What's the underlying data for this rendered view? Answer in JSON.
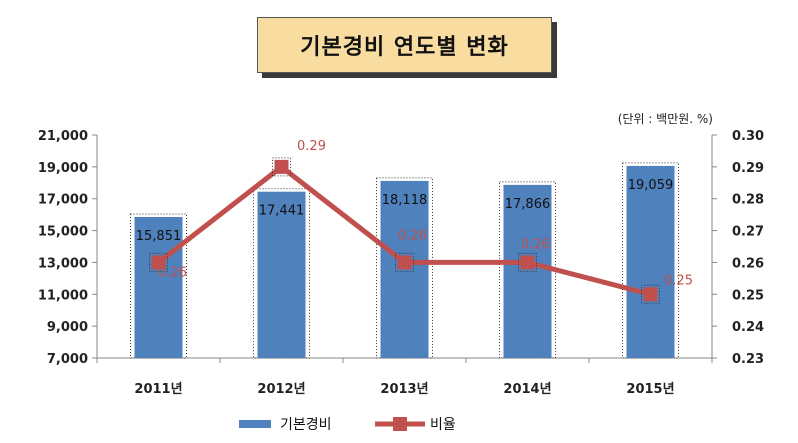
{
  "chart_data": {
    "type": "bar",
    "title": "기본경비 연도별 변화",
    "unit_note": "(단위 : 백만원. %)",
    "categories": [
      "2011년",
      "2012년",
      "2013년",
      "2014년",
      "2015년"
    ],
    "series": [
      {
        "name": "기본경비",
        "type": "bar",
        "axis": "left",
        "values": [
          15851,
          17441,
          18118,
          17866,
          19059
        ],
        "labels": [
          "15,851",
          "17,441",
          "18,118",
          "17,866",
          "19,059"
        ],
        "color": "#4f81bd"
      },
      {
        "name": "비율",
        "type": "line",
        "axis": "right",
        "values": [
          0.26,
          0.29,
          0.26,
          0.26,
          0.25
        ],
        "labels": [
          "0.26",
          "0.29",
          "0.26",
          "0.26",
          "0.25"
        ],
        "color": "#c0504d"
      }
    ],
    "ylim_left": [
      7000,
      21000
    ],
    "yticks_left": [
      "7,000",
      "9,000",
      "11,000",
      "13,000",
      "15,000",
      "17,000",
      "19,000",
      "21,000"
    ],
    "ylim_right": [
      0.23,
      0.3
    ],
    "yticks_right": [
      "0.23",
      "0.24",
      "0.25",
      "0.26",
      "0.27",
      "0.28",
      "0.29",
      "0.30"
    ],
    "legend_position": "bottom",
    "grid": false
  }
}
